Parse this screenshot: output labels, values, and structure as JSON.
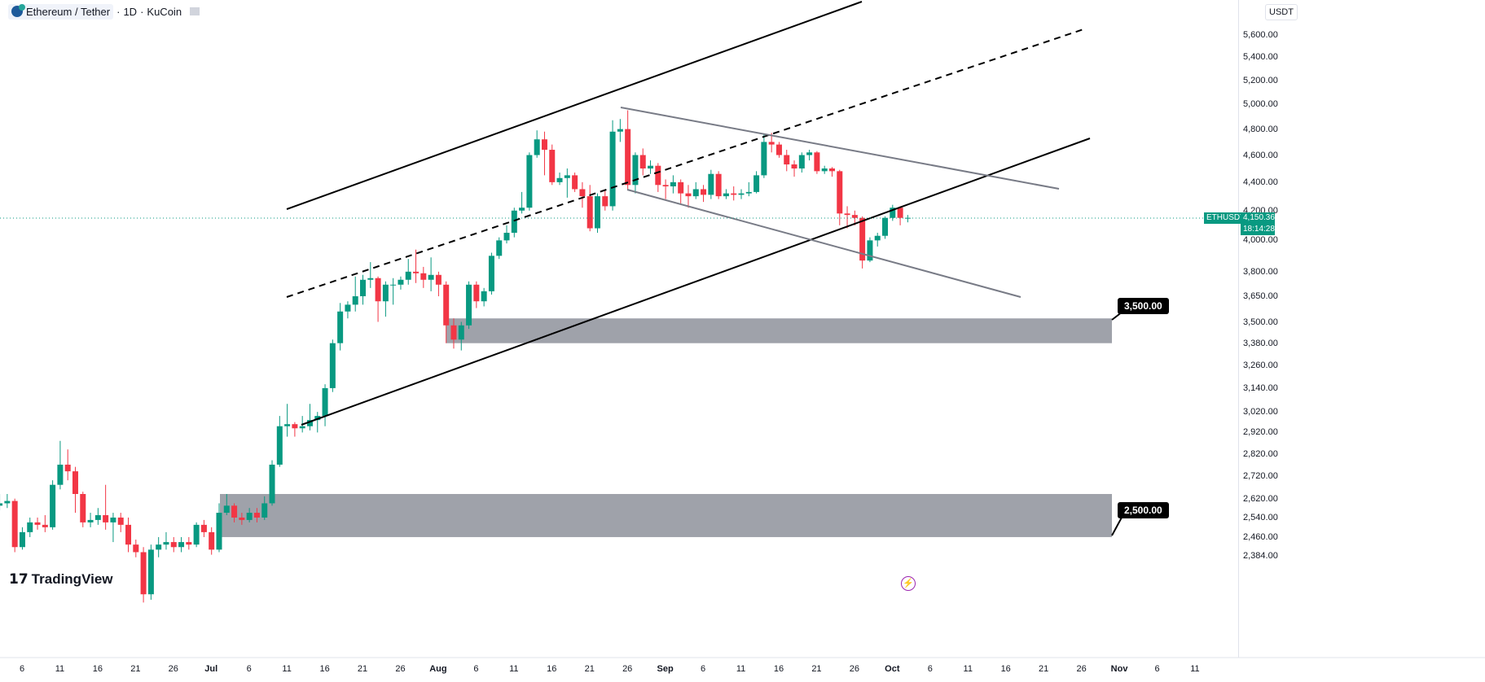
{
  "header": {
    "symbol": "Ethereum / Tether",
    "interval": "1D",
    "exchange": "KuCoin",
    "sep": "·"
  },
  "currency": "USDT",
  "price_tag": {
    "ticker": "ETHUSDT",
    "price": "4,150.36",
    "countdown": "18:14:28"
  },
  "levels": [
    {
      "label": "3,500.00"
    },
    {
      "label": "2,500.00"
    }
  ],
  "logo": "TradingView",
  "colors": {
    "up": "#089981",
    "down": "#f23645",
    "zone": "#9598a1",
    "price_line": "#089981",
    "channel": "#000000",
    "wedge": "#787b86"
  },
  "chart_data": {
    "type": "candlestick",
    "title": "Ethereum / Tether · 1D · KuCoin",
    "start_date": "2025-06-03",
    "scale": "log",
    "ylim": [
      2340,
      5750
    ],
    "yticks": [
      5600,
      5400,
      5200,
      5000,
      4800,
      4600,
      4400,
      4200,
      4000,
      3800,
      3650,
      3500,
      3380,
      3260,
      3140,
      3020,
      2920,
      2820,
      2720,
      2620,
      2540,
      2460,
      2384
    ],
    "ytick_labels": [
      "5,600.00",
      "5,400.00",
      "5,200.00",
      "5,000.00",
      "4,800.00",
      "4,600.00",
      "4,400.00",
      "4,200.00",
      "4,000.00",
      "3,800.00",
      "3,650.00",
      "3,500.00",
      "3,380.00",
      "3,260.00",
      "3,140.00",
      "3,020.00",
      "2,920.00",
      "2,820.00",
      "2,720.00",
      "2,620.00",
      "2,540.00",
      "2,460.00",
      "2,384.00"
    ],
    "xtick_labels": [
      "6",
      "11",
      "16",
      "21",
      "26",
      "Jul",
      "6",
      "11",
      "16",
      "21",
      "26",
      "Aug",
      "6",
      "11",
      "16",
      "21",
      "26",
      "Sep",
      "6",
      "11",
      "16",
      "21",
      "26",
      "Oct",
      "6",
      "11",
      "16",
      "21",
      "26",
      "Nov",
      "6",
      "11"
    ],
    "zones": [
      {
        "from": 3380,
        "to": 3520
      },
      {
        "from": 2460,
        "to": 2640
      }
    ],
    "last_price": 4150.36,
    "ohlc": [
      [
        2590,
        2640,
        2570,
        2600
      ],
      [
        2600,
        2640,
        2580,
        2610
      ],
      [
        2610,
        2620,
        2400,
        2420
      ],
      [
        2420,
        2500,
        2410,
        2480
      ],
      [
        2480,
        2540,
        2460,
        2520
      ],
      [
        2520,
        2540,
        2490,
        2510
      ],
      [
        2510,
        2550,
        2480,
        2500
      ],
      [
        2500,
        2700,
        2490,
        2680
      ],
      [
        2680,
        2880,
        2660,
        2770
      ],
      [
        2770,
        2840,
        2700,
        2740
      ],
      [
        2740,
        2760,
        2560,
        2640
      ],
      [
        2640,
        2650,
        2500,
        2520
      ],
      [
        2520,
        2560,
        2500,
        2530
      ],
      [
        2530,
        2580,
        2510,
        2550
      ],
      [
        2550,
        2680,
        2490,
        2520
      ],
      [
        2520,
        2560,
        2440,
        2540
      ],
      [
        2540,
        2560,
        2480,
        2510
      ],
      [
        2510,
        2540,
        2400,
        2430
      ],
      [
        2430,
        2450,
        2380,
        2400
      ],
      [
        2400,
        2420,
        2210,
        2240
      ],
      [
        2240,
        2430,
        2220,
        2410
      ],
      [
        2410,
        2460,
        2380,
        2430
      ],
      [
        2430,
        2480,
        2410,
        2440
      ],
      [
        2440,
        2460,
        2400,
        2420
      ],
      [
        2420,
        2460,
        2400,
        2440
      ],
      [
        2440,
        2460,
        2410,
        2430
      ],
      [
        2430,
        2520,
        2420,
        2510
      ],
      [
        2510,
        2530,
        2460,
        2480
      ],
      [
        2480,
        2500,
        2390,
        2410
      ],
      [
        2410,
        2600,
        2400,
        2560
      ],
      [
        2560,
        2640,
        2550,
        2590
      ],
      [
        2590,
        2600,
        2520,
        2540
      ],
      [
        2540,
        2560,
        2510,
        2530
      ],
      [
        2530,
        2580,
        2520,
        2560
      ],
      [
        2560,
        2580,
        2520,
        2540
      ],
      [
        2540,
        2630,
        2530,
        2600
      ],
      [
        2600,
        2790,
        2590,
        2770
      ],
      [
        2770,
        3000,
        2760,
        2950
      ],
      [
        2950,
        3060,
        2900,
        2960
      ],
      [
        2960,
        2970,
        2900,
        2940
      ],
      [
        2940,
        3000,
        2920,
        2950
      ],
      [
        2950,
        3060,
        2930,
        2980
      ],
      [
        2980,
        3020,
        2920,
        3000
      ],
      [
        3000,
        3160,
        2950,
        3140
      ],
      [
        3140,
        3400,
        3120,
        3380
      ],
      [
        3380,
        3610,
        3340,
        3560
      ],
      [
        3560,
        3620,
        3520,
        3600
      ],
      [
        3600,
        3770,
        3560,
        3650
      ],
      [
        3650,
        3780,
        3600,
        3750
      ],
      [
        3750,
        3860,
        3700,
        3760
      ],
      [
        3760,
        3770,
        3500,
        3620
      ],
      [
        3620,
        3740,
        3530,
        3720
      ],
      [
        3720,
        3760,
        3600,
        3720
      ],
      [
        3720,
        3770,
        3690,
        3750
      ],
      [
        3750,
        3880,
        3720,
        3800
      ],
      [
        3800,
        3940,
        3730,
        3790
      ],
      [
        3790,
        3830,
        3700,
        3750
      ],
      [
        3750,
        3890,
        3680,
        3780
      ],
      [
        3780,
        3800,
        3650,
        3720
      ],
      [
        3720,
        3740,
        3380,
        3480
      ],
      [
        3480,
        3520,
        3350,
        3400
      ],
      [
        3400,
        3500,
        3340,
        3480
      ],
      [
        3480,
        3740,
        3460,
        3720
      ],
      [
        3720,
        3740,
        3580,
        3620
      ],
      [
        3620,
        3700,
        3590,
        3680
      ],
      [
        3680,
        3920,
        3660,
        3900
      ],
      [
        3900,
        4020,
        3880,
        4000
      ],
      [
        4000,
        4100,
        3980,
        4050
      ],
      [
        4050,
        4220,
        4020,
        4200
      ],
      [
        4200,
        4330,
        4180,
        4220
      ],
      [
        4220,
        4620,
        4200,
        4600
      ],
      [
        4600,
        4790,
        4580,
        4720
      ],
      [
        4720,
        4780,
        4450,
        4640
      ],
      [
        4640,
        4680,
        4380,
        4400
      ],
      [
        4400,
        4470,
        4380,
        4430
      ],
      [
        4430,
        4500,
        4290,
        4450
      ],
      [
        4450,
        4470,
        4330,
        4350
      ],
      [
        4350,
        4400,
        4220,
        4300
      ],
      [
        4300,
        4380,
        4060,
        4080
      ],
      [
        4080,
        4320,
        4050,
        4300
      ],
      [
        4300,
        4340,
        4200,
        4230
      ],
      [
        4230,
        4870,
        4200,
        4780
      ],
      [
        4780,
        4880,
        4700,
        4800
      ],
      [
        4800,
        4950,
        4350,
        4380
      ],
      [
        4380,
        4620,
        4320,
        4600
      ],
      [
        4600,
        4650,
        4450,
        4500
      ],
      [
        4500,
        4560,
        4460,
        4520
      ],
      [
        4520,
        4540,
        4330,
        4380
      ],
      [
        4380,
        4420,
        4280,
        4370
      ],
      [
        4370,
        4450,
        4320,
        4400
      ],
      [
        4400,
        4420,
        4250,
        4320
      ],
      [
        4320,
        4380,
        4220,
        4300
      ],
      [
        4300,
        4400,
        4280,
        4350
      ],
      [
        4350,
        4380,
        4260,
        4310
      ],
      [
        4310,
        4490,
        4280,
        4460
      ],
      [
        4460,
        4480,
        4280,
        4300
      ],
      [
        4300,
        4350,
        4280,
        4320
      ],
      [
        4320,
        4370,
        4270,
        4310
      ],
      [
        4310,
        4350,
        4280,
        4320
      ],
      [
        4320,
        4400,
        4300,
        4330
      ],
      [
        4330,
        4480,
        4320,
        4450
      ],
      [
        4450,
        4760,
        4430,
        4700
      ],
      [
        4700,
        4770,
        4620,
        4680
      ],
      [
        4680,
        4700,
        4580,
        4600
      ],
      [
        4600,
        4640,
        4480,
        4530
      ],
      [
        4530,
        4560,
        4440,
        4500
      ],
      [
        4500,
        4620,
        4470,
        4600
      ],
      [
        4600,
        4640,
        4560,
        4620
      ],
      [
        4620,
        4630,
        4460,
        4480
      ],
      [
        4480,
        4520,
        4460,
        4500
      ],
      [
        4500,
        4510,
        4440,
        4480
      ],
      [
        4480,
        4490,
        4100,
        4180
      ],
      [
        4180,
        4230,
        4080,
        4170
      ],
      [
        4170,
        4200,
        4100,
        4150
      ],
      [
        4150,
        4160,
        3820,
        3870
      ],
      [
        3870,
        4020,
        3860,
        4000
      ],
      [
        4000,
        4050,
        3960,
        4030
      ],
      [
        4030,
        4160,
        4010,
        4150
      ],
      [
        4150,
        4240,
        4130,
        4220
      ],
      [
        4220,
        4230,
        4100,
        4150
      ],
      [
        4150,
        4170,
        4120,
        4150.36
      ]
    ]
  }
}
